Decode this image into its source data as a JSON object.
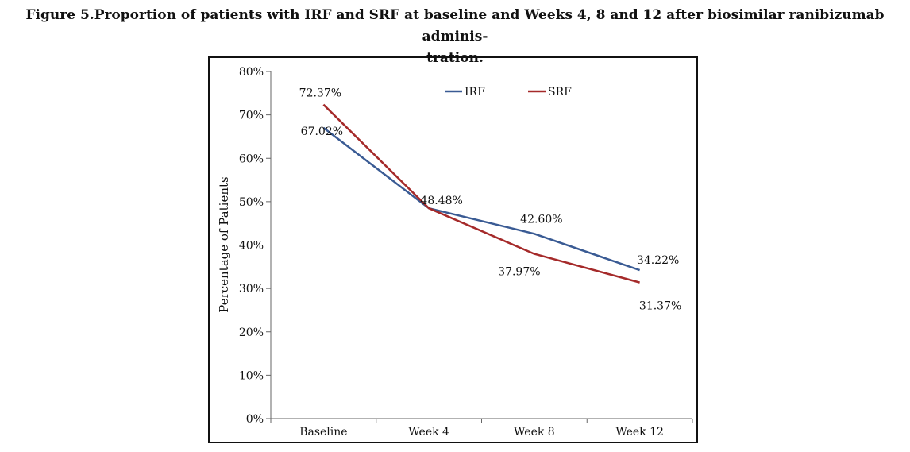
{
  "caption": "Figure 5.Proportion of patients with IRF and SRF at baseline and Weeks 4, 8 and 12 after biosimilar ranibizumab adminis-tration.",
  "caption_line1": "Figure 5.Proportion of patients with IRF and SRF at baseline and Weeks 4, 8 and 12 after biosimilar ranibizumab adminis-",
  "caption_line2": "tration.",
  "chart_data": {
    "type": "line",
    "title": "",
    "xlabel": "",
    "ylabel": "Percentage of Patients",
    "categories": [
      "Baseline",
      "Week 4",
      "Week 8",
      "Week 12"
    ],
    "ylim": [
      0,
      80
    ],
    "yticks": [
      "0%",
      "10%",
      "20%",
      "30%",
      "40%",
      "50%",
      "60%",
      "70%",
      "80%"
    ],
    "grid": false,
    "legend_position": "top-center",
    "series": [
      {
        "name": "IRF",
        "color": "#3a5b94",
        "values": [
          67.02,
          48.48,
          42.6,
          34.22
        ],
        "labels": [
          "67.02%",
          "48.48%",
          "42.60%",
          "34.22%"
        ]
      },
      {
        "name": "SRF",
        "color": "#a52a2a",
        "values": [
          72.37,
          48.48,
          37.97,
          31.37
        ],
        "labels": [
          "72.37%",
          "",
          "37.97%",
          "31.37%"
        ]
      }
    ]
  }
}
